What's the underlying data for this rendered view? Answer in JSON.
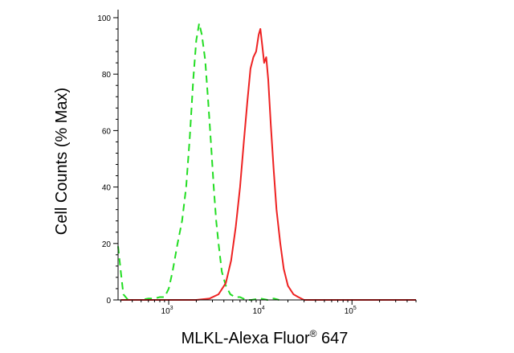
{
  "chart_data": {
    "type": "line",
    "title": "",
    "xlabel": "MLKL-Alexa Fluor",
    "xlabel_sup": "®",
    "xlabel_suffix": " 647",
    "ylabel": "Cell Counts (% Max)",
    "x_scale": "log",
    "xlim": [
      280,
      500000
    ],
    "ylim": [
      0,
      100
    ],
    "grid": false,
    "legend": "none",
    "y_ticks": [
      0,
      20,
      40,
      60,
      80,
      100
    ],
    "y_tick_labels": [
      "0",
      "20",
      "40",
      "60",
      "80",
      "100"
    ],
    "x_ticks": [
      1000,
      10000,
      100000
    ],
    "x_tick_bases": [
      "10",
      "10",
      "10"
    ],
    "x_tick_exponents": [
      "3",
      "4",
      "5"
    ],
    "series": [
      {
        "color": "#22dd22",
        "style": "dashed",
        "x": [
          280,
          300,
          320,
          360,
          420,
          500,
          600,
          700,
          800,
          900,
          1000,
          1100,
          1250,
          1400,
          1550,
          1700,
          1850,
          2000,
          2150,
          2300,
          2500,
          2700,
          2900,
          3100,
          3300,
          3500,
          3800,
          4200,
          4700,
          5300,
          6000,
          7000,
          8000,
          10000,
          12000,
          14000,
          16000
        ],
        "y": [
          19,
          10,
          2,
          0,
          0,
          0,
          0.5,
          0.5,
          1,
          1,
          4,
          10,
          20,
          28,
          40,
          58,
          78,
          92,
          98,
          94,
          85,
          70,
          55,
          40,
          28,
          20,
          10,
          5,
          2,
          1,
          1,
          0,
          0,
          0.5,
          0,
          0.5,
          0
        ]
      },
      {
        "color": "#ee2222",
        "style": "solid",
        "x": [
          300,
          1000,
          2000,
          2800,
          3500,
          4200,
          4800,
          5400,
          6000,
          6600,
          7200,
          7800,
          8400,
          9000,
          9600,
          10000,
          10500,
          11000,
          11600,
          12200,
          13000,
          14000,
          15000,
          16500,
          18000,
          20000,
          23000,
          26000,
          30000,
          40000,
          60000,
          100000,
          200000,
          500000
        ],
        "y": [
          0,
          0,
          0,
          0.5,
          2,
          6,
          14,
          26,
          40,
          56,
          70,
          82,
          86,
          88,
          94,
          96,
          90,
          84,
          86,
          78,
          62,
          46,
          32,
          20,
          11,
          5,
          2,
          1,
          0,
          0,
          0,
          0,
          0,
          0
        ]
      }
    ]
  }
}
